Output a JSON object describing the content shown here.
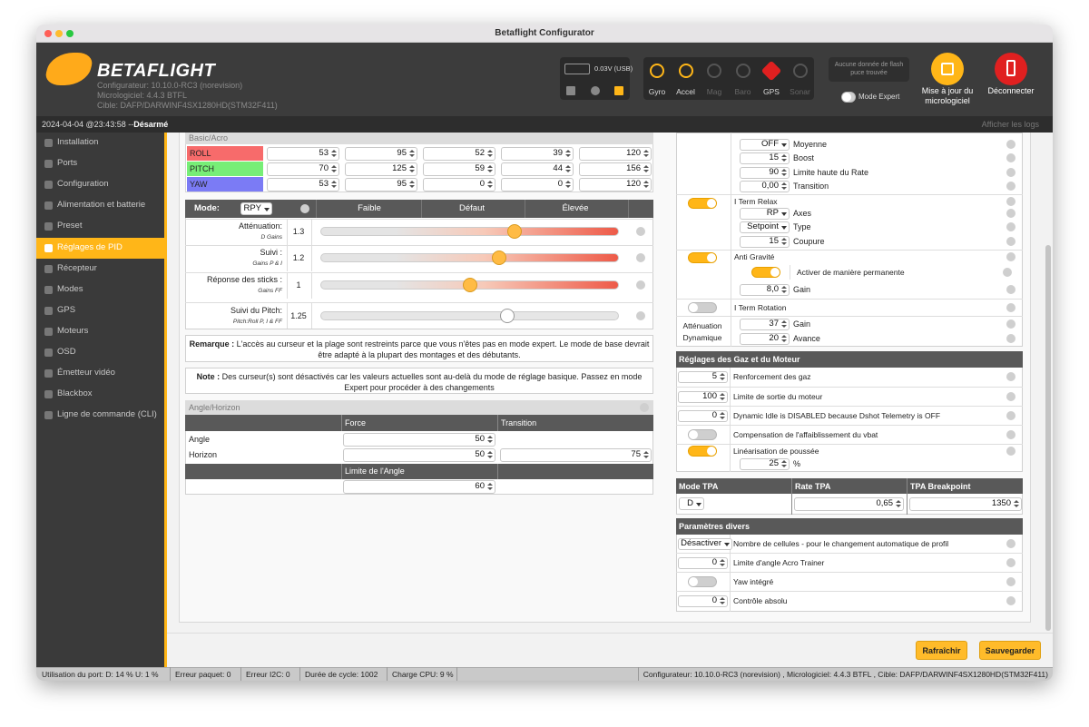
{
  "window_title": "Betaflight Configurator",
  "header": {
    "logo": "BETAFLIGHT",
    "configurator": "Configurateur: 10.10.0-RC3 (norevision)",
    "firmware": "Micrologiciel: 4.4.3 BTFL",
    "target": "Cible: DAFP/DARWINF4SX1280HD(STM32F411)",
    "battery": "0.03V (USB)",
    "sensors": [
      {
        "name": "Gyro",
        "active": true
      },
      {
        "name": "Accel",
        "active": true
      },
      {
        "name": "Mag",
        "active": false
      },
      {
        "name": "Baro",
        "active": false
      },
      {
        "name": "GPS",
        "active": true
      },
      {
        "name": "Sonar",
        "active": false
      }
    ],
    "flash": "Aucune donnée de flash puce trouvée",
    "expert_mode": "Mode Expert",
    "update_firmware": "Mise à jour du micrologiciel",
    "disconnect": "Déconnecter"
  },
  "status_line": {
    "time": "2024-04-04 @23:43:58 -- ",
    "state": "Désarmé",
    "show_logs": "Afficher les logs"
  },
  "sidebar": [
    {
      "label": "Installation"
    },
    {
      "label": "Ports"
    },
    {
      "label": "Configuration"
    },
    {
      "label": "Alimentation et batterie"
    },
    {
      "label": "Preset"
    },
    {
      "label": "Réglages de PID",
      "active": true
    },
    {
      "label": "Récepteur"
    },
    {
      "label": "Modes"
    },
    {
      "label": "GPS"
    },
    {
      "label": "Moteurs"
    },
    {
      "label": "OSD"
    },
    {
      "label": "Émetteur vidéo"
    },
    {
      "label": "Blackbox"
    },
    {
      "label": "Ligne de commande (CLI)"
    }
  ],
  "pid_table": {
    "header": "Basic/Acro",
    "rows": [
      {
        "name": "ROLL",
        "color": "#f76b6b",
        "values": [
          53,
          95,
          52,
          39,
          120
        ]
      },
      {
        "name": "PITCH",
        "color": "#77ee77",
        "values": [
          70,
          125,
          59,
          44,
          156
        ]
      },
      {
        "name": "YAW",
        "color": "#7b7bf5",
        "values": [
          53,
          95,
          0,
          0,
          120
        ]
      }
    ]
  },
  "sliders": {
    "mode_label": "Mode:",
    "mode": "RPY",
    "columns": [
      "Faible",
      "Défaut",
      "Élevée"
    ],
    "range": [
      0,
      2
    ],
    "rows": [
      {
        "label": "Atténuation:",
        "sub": "D Gains",
        "value": 1.3,
        "enabled": true
      },
      {
        "label": "Suivi :",
        "sub": "Gains P & I",
        "value": 1.2,
        "enabled": true
      },
      {
        "label": "Réponse des sticks :",
        "sub": "Gains FF",
        "value": 1,
        "enabled": true
      },
      {
        "label": "Suivi du Pitch:",
        "sub": "Pitch:Roll P, I & FF",
        "value": 1.25,
        "enabled": false
      }
    ]
  },
  "remark": {
    "title": "Remarque :",
    "text": "L'accès au curseur et la plage sont restreints parce que vous n'êtes pas en mode expert. Le mode de base devrait être adapté à la plupart des montages et des débutants."
  },
  "note": {
    "title": "Note :",
    "text": "Des curseur(s) sont désactivés car les valeurs actuelles sont au-delà du mode de réglage basique. Passez en mode Expert pour procéder à des changements"
  },
  "angle_horizon": {
    "header": "Angle/Horizon",
    "columns": [
      "Force",
      "Transition"
    ],
    "rows": [
      {
        "name": "Angle",
        "force": 50
      },
      {
        "name": "Horizon",
        "force": 50,
        "transition": 75
      }
    ],
    "limit_label": "Limite de l'Angle",
    "limit": 60
  },
  "pid_settings": {
    "rows_top": [
      {
        "value": "OFF",
        "label": "Moyenne"
      },
      {
        "value": 15,
        "label": "Boost"
      },
      {
        "value": 90,
        "label": "Limite haute du Rate"
      },
      {
        "value": "0,00",
        "label": "Transition"
      }
    ],
    "i_term_relax": {
      "label": "I Term Relax",
      "on": true,
      "rows": [
        {
          "value": "RP",
          "label": "Axes"
        },
        {
          "value": "Setpoint",
          "label": "Type"
        },
        {
          "value": 15,
          "label": "Coupure"
        }
      ]
    },
    "anti_gravity": {
      "label": "Anti Gravité",
      "on": true,
      "permanent": "Activer de manière permanente",
      "permanent_on": true,
      "gain_value": "8,0",
      "gain_label": "Gain"
    },
    "i_term_rotation": {
      "label": "I Term Rotation",
      "on": false
    },
    "dynamic_damping": {
      "label": "Atténuation Dynamique",
      "rows": [
        {
          "value": 37,
          "label": "Gain"
        },
        {
          "value": 20,
          "label": "Avance"
        }
      ]
    }
  },
  "throttle": {
    "title": "Réglages des Gaz et du Moteur",
    "rows": [
      {
        "value": 5,
        "label": "Renforcement des gaz"
      },
      {
        "value": 100,
        "label": "Limite de sortie du moteur"
      },
      {
        "value": 0,
        "label": "Dynamic Idle is DISABLED because Dshot Telemetry is OFF"
      },
      {
        "on": false,
        "label": "Compensation de l'affaiblissement du vbat"
      },
      {
        "on": true,
        "label": "Linéarisation de poussée",
        "value": 25,
        "unit": "%"
      }
    ]
  },
  "tpa": {
    "headers": [
      "Mode TPA",
      "Rate TPA",
      "TPA Breakpoint"
    ],
    "values": [
      "D",
      "0,65",
      1350
    ]
  },
  "misc": {
    "title": "Paramètres divers",
    "rows": [
      {
        "value": "Désactiver",
        "label": "Nombre de cellules - pour le changement automatique de profil"
      },
      {
        "value": 0,
        "label": "Limite d'angle Acro Trainer"
      },
      {
        "on": false,
        "label": "Yaw intégré"
      },
      {
        "value": 0,
        "label": "Contrôle absolu"
      }
    ]
  },
  "buttons": [
    "Rafraîchir",
    "Sauvegarder"
  ],
  "status_bar": {
    "items": [
      "Utilisation du port: D: 14 % U: 1 %",
      "Erreur paquet: 0",
      "Erreur I2C: 0",
      "Durée de cycle: 1002",
      "Charge CPU: 9 %"
    ],
    "version": "Configurateur: 10.10.0-RC3 (norevision) , Micrologiciel: 4.4.3 BTFL , Cible: DAFP/DARWINF4SX1280HD(STM32F411)"
  }
}
